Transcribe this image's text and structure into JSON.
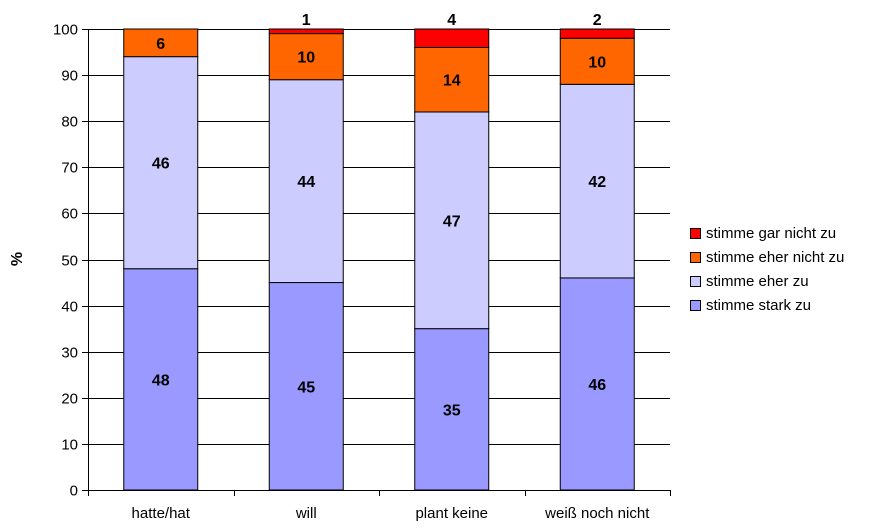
{
  "chart_data": {
    "type": "bar",
    "stacked": true,
    "ylabel": "%",
    "xlabel": "",
    "title": "",
    "ylim": [
      0,
      100
    ],
    "yticks": [
      0,
      10,
      20,
      30,
      40,
      50,
      60,
      70,
      80,
      90,
      100
    ],
    "grid": true,
    "legend_position": "right",
    "categories": [
      "hatte/hat",
      "will",
      "plant keine",
      "weiß noch nicht"
    ],
    "series": [
      {
        "name": "stimme stark zu",
        "color": "#9999ff",
        "values": [
          48,
          45,
          35,
          46
        ],
        "labels": [
          "48",
          "45",
          "35",
          "46"
        ]
      },
      {
        "name": "stimme eher zu",
        "color": "#ccccff",
        "values": [
          46,
          44,
          47,
          42
        ],
        "labels": [
          "46",
          "44",
          "47",
          "42"
        ]
      },
      {
        "name": "stimme eher nicht zu",
        "color": "#ff6600",
        "values": [
          6,
          10,
          14,
          10
        ],
        "labels": [
          "6",
          "10",
          "14",
          "10"
        ]
      },
      {
        "name": "stimme gar nicht zu",
        "color": "#ff0000",
        "values": [
          0,
          1,
          4,
          2
        ],
        "labels": [
          "",
          "1",
          "4",
          "2"
        ]
      }
    ]
  }
}
